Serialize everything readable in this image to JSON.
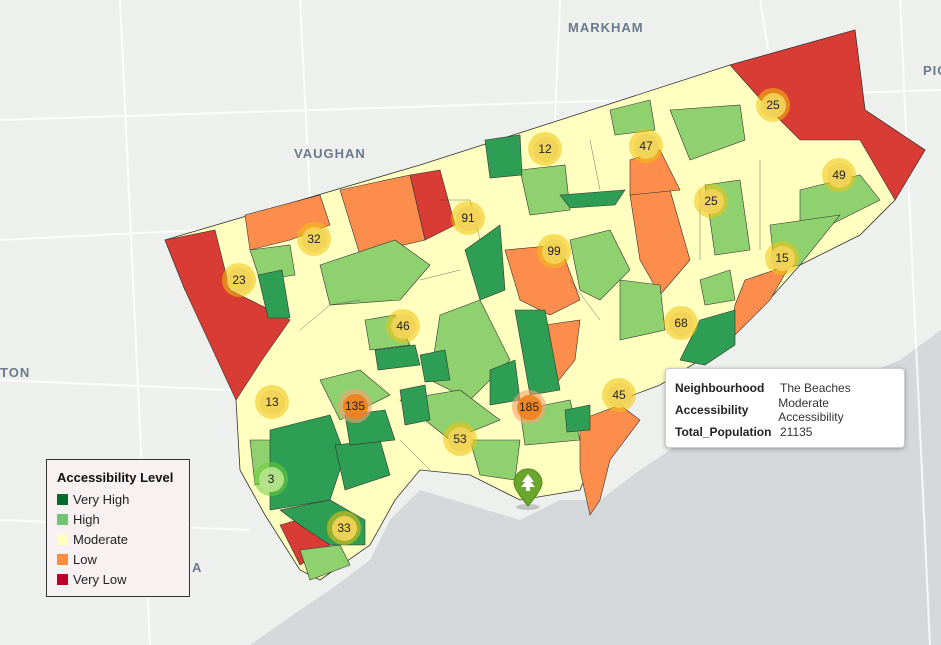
{
  "places": {
    "markham": "MARKHAM",
    "vaughan": "VAUGHAN",
    "pic": "PIC",
    "ton": "TON",
    "a": "A"
  },
  "legend": {
    "title": "Accessibility Level",
    "items": [
      {
        "label": "Very High",
        "color": "#1a7f3b"
      },
      {
        "label": "High",
        "color": "#7ccf6b"
      },
      {
        "label": "Moderate",
        "color": "#ffffc0"
      },
      {
        "label": "Low",
        "color": "#fd8d4c"
      },
      {
        "label": "Very Low",
        "color": "#c8102e"
      }
    ]
  },
  "tooltip": {
    "rows": [
      {
        "key": "Neighbourhood",
        "value": "The Beaches"
      },
      {
        "key": "Accessibility",
        "value": "Moderate Accessibility"
      },
      {
        "key": "Total_Population",
        "value": "21135"
      }
    ]
  },
  "clusters": [
    {
      "count": "25",
      "style": "yellow"
    },
    {
      "count": "12",
      "style": "yellow"
    },
    {
      "count": "47",
      "style": "yellow"
    },
    {
      "count": "49",
      "style": "yellow"
    },
    {
      "count": "91",
      "style": "yellow"
    },
    {
      "count": "25",
      "style": "yellow"
    },
    {
      "count": "32",
      "style": "yellow"
    },
    {
      "count": "99",
      "style": "yellow"
    },
    {
      "count": "15",
      "style": "yellow"
    },
    {
      "count": "23",
      "style": "yellow"
    },
    {
      "count": "46",
      "style": "yellow"
    },
    {
      "count": "68",
      "style": "yellow"
    },
    {
      "count": "13",
      "style": "yellow"
    },
    {
      "count": "135",
      "style": "orange"
    },
    {
      "count": "185",
      "style": "orange"
    },
    {
      "count": "45",
      "style": "yellow"
    },
    {
      "count": "53",
      "style": "yellow"
    },
    {
      "count": "3",
      "style": "green"
    },
    {
      "count": "33",
      "style": "yellow"
    }
  ],
  "pin": {
    "icon": "tree-icon",
    "color": "#6aa62b"
  }
}
